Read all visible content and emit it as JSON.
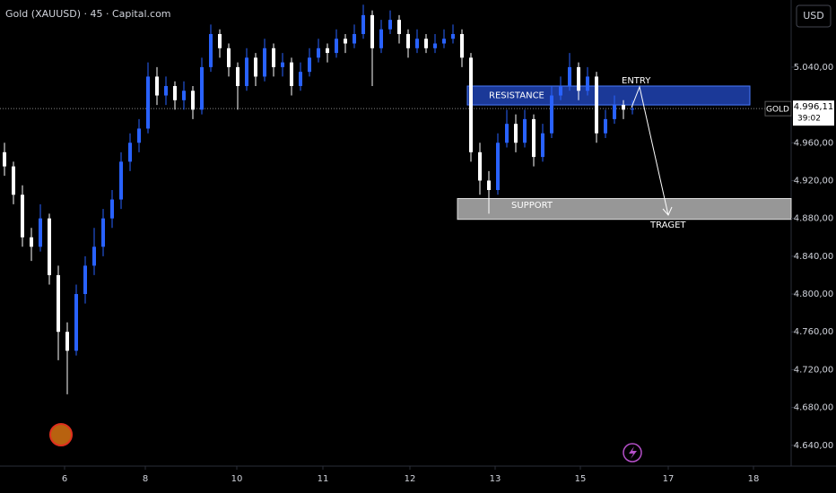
{
  "chart_data": {
    "type": "candlestick",
    "title": "Gold (XAUUSD) · 45 · Capital.com",
    "currency": "USD",
    "symbol_tag": "GOLD",
    "countdown": "39:02",
    "up_color": "#2962ff",
    "down_color": "#ffffff",
    "ohlc": [
      [
        4950,
        4960,
        4925,
        4935
      ],
      [
        4935,
        4940,
        4895,
        4905
      ],
      [
        4905,
        4915,
        4850,
        4860
      ],
      [
        4860,
        4870,
        4835,
        4850
      ],
      [
        4850,
        4895,
        4845,
        4880
      ],
      [
        4880,
        4885,
        4810,
        4820
      ],
      [
        4820,
        4830,
        4730,
        4760
      ],
      [
        4760,
        4770,
        4694,
        4740
      ],
      [
        4740,
        4810,
        4735,
        4800
      ],
      [
        4800,
        4840,
        4790,
        4830
      ],
      [
        4830,
        4870,
        4820,
        4850
      ],
      [
        4850,
        4890,
        4840,
        4880
      ],
      [
        4880,
        4910,
        4870,
        4900
      ],
      [
        4900,
        4950,
        4890,
        4940
      ],
      [
        4940,
        4970,
        4930,
        4960
      ],
      [
        4960,
        4985,
        4950,
        4975
      ],
      [
        4975,
        5045,
        4970,
        5030
      ],
      [
        5030,
        5040,
        5000,
        5010
      ],
      [
        5010,
        5030,
        5000,
        5020
      ],
      [
        5020,
        5025,
        4995,
        5005
      ],
      [
        5005,
        5025,
        4995,
        5015
      ],
      [
        5015,
        5020,
        4985,
        4995
      ],
      [
        4995,
        5050,
        4990,
        5040
      ],
      [
        5040,
        5085,
        5035,
        5075
      ],
      [
        5075,
        5080,
        5050,
        5060
      ],
      [
        5060,
        5065,
        5030,
        5040
      ],
      [
        5040,
        5045,
        4995,
        5020
      ],
      [
        5020,
        5060,
        5015,
        5050
      ],
      [
        5050,
        5055,
        5020,
        5030
      ],
      [
        5030,
        5070,
        5025,
        5060
      ],
      [
        5060,
        5065,
        5030,
        5040
      ],
      [
        5040,
        5055,
        5030,
        5045
      ],
      [
        5045,
        5050,
        5010,
        5020
      ],
      [
        5020,
        5045,
        5015,
        5035
      ],
      [
        5035,
        5060,
        5030,
        5050
      ],
      [
        5050,
        5070,
        5045,
        5060
      ],
      [
        5060,
        5065,
        5045,
        5055
      ],
      [
        5055,
        5080,
        5050,
        5070
      ],
      [
        5070,
        5075,
        5055,
        5065
      ],
      [
        5065,
        5085,
        5060,
        5075
      ],
      [
        5075,
        5106,
        5070,
        5095
      ],
      [
        5095,
        5100,
        5020,
        5060
      ],
      [
        5060,
        5090,
        5055,
        5080
      ],
      [
        5080,
        5100,
        5075,
        5090
      ],
      [
        5090,
        5095,
        5065,
        5075
      ],
      [
        5075,
        5080,
        5050,
        5060
      ],
      [
        5060,
        5080,
        5055,
        5070
      ],
      [
        5070,
        5075,
        5055,
        5060
      ],
      [
        5060,
        5075,
        5055,
        5065
      ],
      [
        5065,
        5080,
        5060,
        5070
      ],
      [
        5070,
        5085,
        5065,
        5075
      ],
      [
        5075,
        5080,
        5040,
        5050
      ],
      [
        5050,
        5055,
        4940,
        4950
      ],
      [
        4950,
        4960,
        4905,
        4920
      ],
      [
        4920,
        4930,
        4885,
        4910
      ],
      [
        4910,
        4970,
        4905,
        4960
      ],
      [
        4960,
        4995,
        4955,
        4980
      ],
      [
        4980,
        4990,
        4950,
        4960
      ],
      [
        4960,
        4995,
        4955,
        4985
      ],
      [
        4985,
        4990,
        4935,
        4945
      ],
      [
        4945,
        4980,
        4940,
        4970
      ],
      [
        4970,
        5020,
        4965,
        5010
      ],
      [
        5010,
        5030,
        5005,
        5020
      ],
      [
        5020,
        5055,
        5015,
        5040
      ],
      [
        5040,
        5045,
        5005,
        5015
      ],
      [
        5015,
        5040,
        5010,
        5030
      ],
      [
        5030,
        5035,
        4960,
        4970
      ],
      [
        4970,
        4995,
        4965,
        4985
      ],
      [
        4985,
        5010,
        4980,
        5000
      ],
      [
        5000,
        5005,
        4985,
        4995
      ],
      [
        4995,
        5005,
        4990,
        4996.11
      ]
    ],
    "price_line": {
      "value": 4996.11,
      "label": "4.996,11"
    },
    "xlim": [
      -0.5,
      87.7
    ],
    "xticks": [
      {
        "value": 6.7,
        "label": "6"
      },
      {
        "value": 15.7,
        "label": "8"
      },
      {
        "value": 25.9,
        "label": "10"
      },
      {
        "value": 35.5,
        "label": "11"
      },
      {
        "value": 45.2,
        "label": "12"
      },
      {
        "value": 54.7,
        "label": "13"
      },
      {
        "value": 64.2,
        "label": "15"
      },
      {
        "value": 74,
        "label": "17"
      },
      {
        "value": 83.5,
        "label": "18"
      }
    ],
    "ylim": [
      4618,
      5111
    ],
    "yticks": [
      {
        "value": 4640,
        "label": "4.640,00"
      },
      {
        "value": 4680,
        "label": "4.680,00"
      },
      {
        "value": 4720,
        "label": "4.720,00"
      },
      {
        "value": 4760,
        "label": "4.760,00"
      },
      {
        "value": 4800,
        "label": "4.800,00"
      },
      {
        "value": 4840,
        "label": "4.840,00"
      },
      {
        "value": 4880,
        "label": "4.880,00"
      },
      {
        "value": 4920,
        "label": "4.920,00"
      },
      {
        "value": 4960,
        "label": "4.960,00"
      },
      {
        "value": 5040,
        "label": "5.040,00"
      }
    ],
    "zones": [
      {
        "label": "RESISTANCE",
        "top": 5020,
        "bottom": 5000,
        "color": "#1e3fa8"
      },
      {
        "label": "SUPPORT",
        "top": 4901,
        "bottom": 4879,
        "color": "#b2b2b2"
      }
    ],
    "annotations": {
      "entry": "ENTRY",
      "target": "TRAGET"
    }
  }
}
